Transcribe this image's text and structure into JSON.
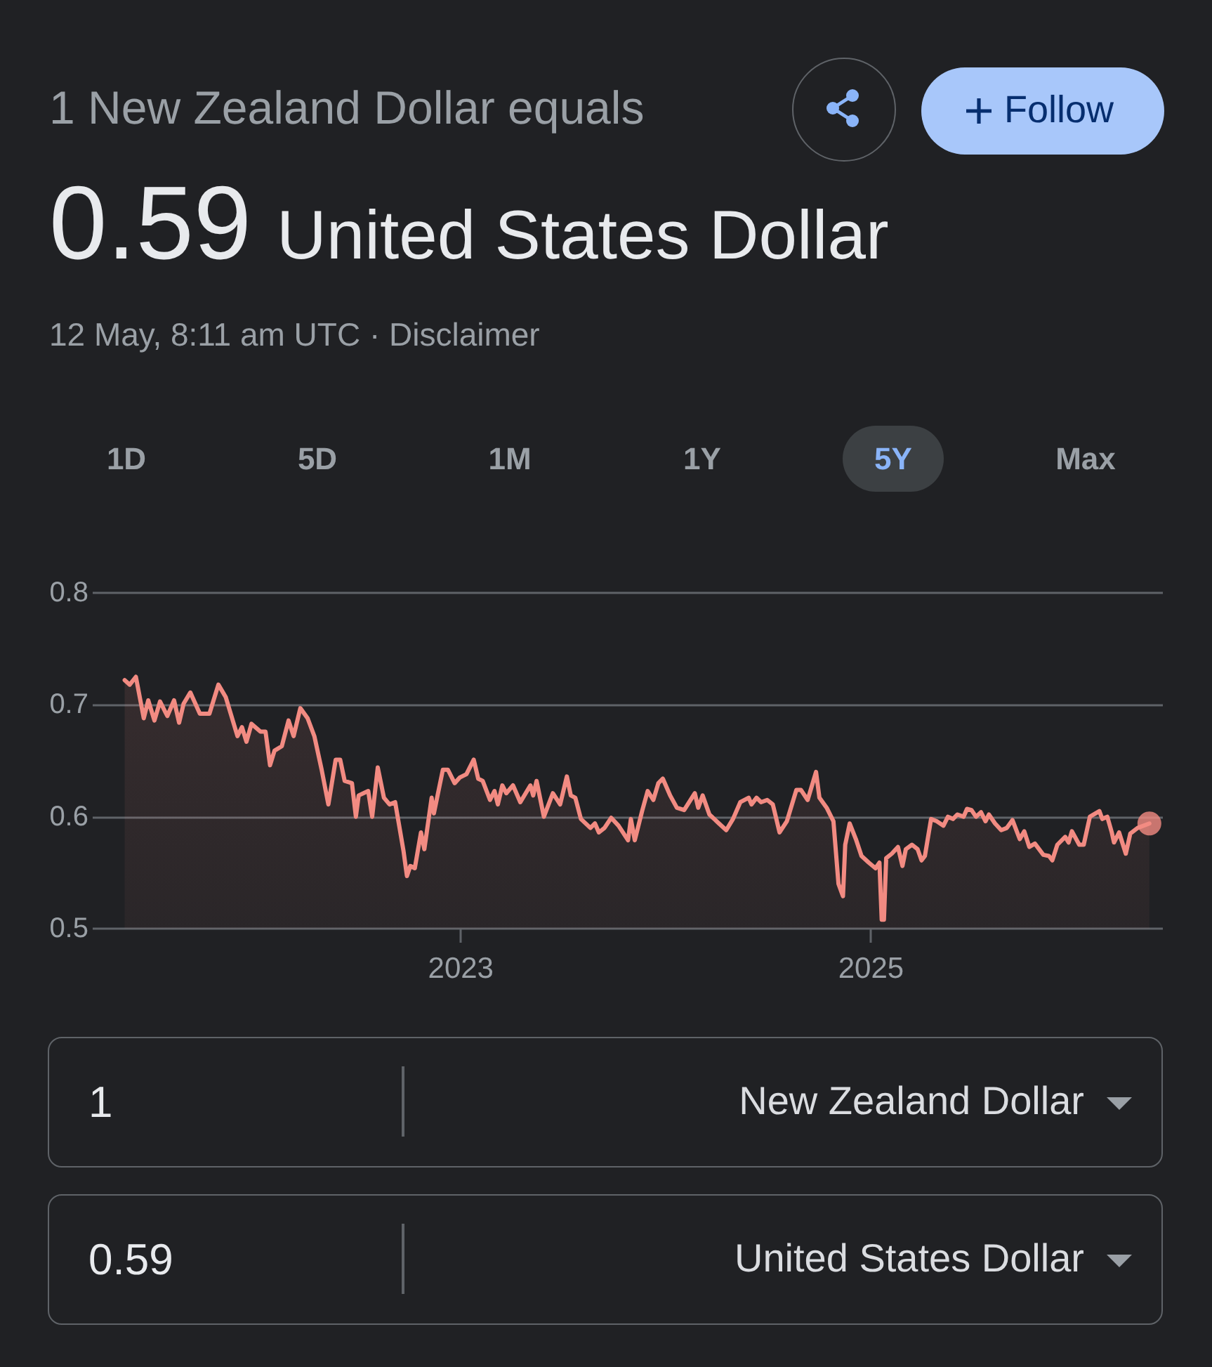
{
  "chart_data": {
    "type": "area",
    "title": "0.59 United States Dollar",
    "subtitle": "1 New Zealand Dollar equals",
    "annotations": [
      "12 May, 8:11 am UTC · Disclaimer",
      "Follow",
      "1D",
      "5D",
      "1M",
      "1Y",
      "5Y",
      "Max",
      "1",
      "New Zealand Dollar",
      "0.59",
      "United States Dollar"
    ],
    "xlim": [
      "2021-03-16",
      "2026-06-05"
    ],
    "xticks": [
      "2023",
      "2025"
    ],
    "ylim": [
      0.5,
      0.8
    ],
    "yticks": [
      0.5,
      0.6,
      0.7,
      0.8
    ],
    "grid": "y",
    "series": [
      {
        "color": "#f28b82",
        "x": [
          "2021-05-12",
          "2021-05-21",
          "2021-06-01",
          "2021-06-15",
          "2021-06-23",
          "2021-07-04",
          "2021-07-14",
          "2021-07-27",
          "2021-08-08",
          "2021-08-17",
          "2021-08-25",
          "2021-09-06",
          "2021-09-23",
          "2021-10-10",
          "2021-10-26",
          "2021-11-08",
          "2021-11-29",
          "2021-12-07",
          "2021-12-15",
          "2021-12-24",
          "2022-01-09",
          "2022-01-18",
          "2022-01-26",
          "2022-02-03",
          "2022-02-16",
          "2022-02-28",
          "2022-03-09",
          "2022-03-21",
          "2022-04-03",
          "2022-04-15",
          "2022-04-28",
          "2022-05-10",
          "2022-05-23",
          "2022-05-31",
          "2022-06-08",
          "2022-06-21",
          "2022-06-28",
          "2022-07-03",
          "2022-07-20",
          "2022-07-27",
          "2022-08-06",
          "2022-08-17",
          "2022-08-27",
          "2022-09-06",
          "2022-09-21",
          "2022-09-27",
          "2022-10-03",
          "2022-10-11",
          "2022-10-22",
          "2022-10-28",
          "2022-11-10",
          "2022-11-14",
          "2022-11-30",
          "2022-12-09",
          "2022-12-21",
          "2022-12-30",
          "2023-01-11",
          "2023-01-24",
          "2023-02-01",
          "2023-02-09",
          "2023-02-22",
          "2023-03-02",
          "2023-03-08",
          "2023-03-16",
          "2023-03-23",
          "2023-04-04",
          "2023-04-17",
          "2023-05-05",
          "2023-05-10",
          "2023-05-16",
          "2023-05-29",
          "2023-06-14",
          "2023-06-27",
          "2023-07-09",
          "2023-07-16",
          "2023-07-24",
          "2023-08-03",
          "2023-08-20",
          "2023-08-28",
          "2023-09-04",
          "2023-09-14",
          "2023-09-26",
          "2023-10-09",
          "2023-10-26",
          "2023-10-31",
          "2023-11-07",
          "2023-11-20",
          "2023-11-30",
          "2023-12-10",
          "2023-12-19",
          "2023-12-27",
          "2024-01-09",
          "2024-01-21",
          "2024-02-03",
          "2024-02-22",
          "2024-02-28",
          "2024-03-07",
          "2024-03-19",
          "2024-04-05",
          "2024-04-18",
          "2024-04-30",
          "2024-05-13",
          "2024-05-28",
          "2024-06-02",
          "2024-06-11",
          "2024-06-19",
          "2024-06-30",
          "2024-07-10",
          "2024-07-22",
          "2024-08-04",
          "2024-08-21",
          "2024-08-29",
          "2024-09-10",
          "2024-09-25",
          "2024-10-01",
          "2024-10-14",
          "2024-10-26",
          "2024-11-04",
          "2024-11-12",
          "2024-11-16",
          "2024-11-24",
          "2024-12-05",
          "2024-12-15",
          "2024-12-28",
          "2025-01-09",
          "2025-01-16",
          "2025-01-20",
          "2025-01-24",
          "2025-01-28",
          "2025-02-07",
          "2025-02-18",
          "2025-02-26",
          "2025-03-04",
          "2025-03-15",
          "2025-03-25",
          "2025-04-01",
          "2025-04-07",
          "2025-04-18",
          "2025-04-28",
          "2025-05-10",
          "2025-05-18",
          "2025-05-27",
          "2025-06-04",
          "2025-06-15",
          "2025-06-21",
          "2025-06-29",
          "2025-07-07",
          "2025-07-16",
          "2025-07-24",
          "2025-07-30",
          "2025-08-10",
          "2025-08-21",
          "2025-08-31",
          "2025-09-10",
          "2025-09-23",
          "2025-10-01",
          "2025-10-10",
          "2025-10-20",
          "2025-11-04",
          "2025-11-14",
          "2025-11-20",
          "2025-11-29",
          "2025-12-13",
          "2025-12-19",
          "2025-12-25",
          "2026-01-07",
          "2026-01-15",
          "2026-01-26",
          "2026-02-12",
          "2026-02-17",
          "2026-02-26",
          "2026-03-06",
          "2026-03-10",
          "2026-03-19",
          "2026-03-31",
          "2026-04-08",
          "2026-04-21",
          "2026-05-12"
        ],
        "values": [
          0.722,
          0.718,
          0.725,
          0.688,
          0.704,
          0.686,
          0.703,
          0.69,
          0.704,
          0.684,
          0.701,
          0.711,
          0.692,
          0.692,
          0.718,
          0.707,
          0.672,
          0.68,
          0.667,
          0.683,
          0.676,
          0.676,
          0.646,
          0.659,
          0.663,
          0.686,
          0.672,
          0.697,
          0.688,
          0.672,
          0.642,
          0.611,
          0.651,
          0.651,
          0.632,
          0.63,
          0.6,
          0.619,
          0.623,
          0.6,
          0.644,
          0.617,
          0.611,
          0.613,
          0.569,
          0.547,
          0.556,
          0.554,
          0.586,
          0.571,
          0.617,
          0.603,
          0.642,
          0.642,
          0.63,
          0.635,
          0.638,
          0.651,
          0.634,
          0.632,
          0.615,
          0.623,
          0.611,
          0.628,
          0.621,
          0.628,
          0.613,
          0.628,
          0.619,
          0.632,
          0.6,
          0.621,
          0.611,
          0.636,
          0.619,
          0.617,
          0.598,
          0.59,
          0.594,
          0.586,
          0.59,
          0.599,
          0.592,
          0.579,
          0.598,
          0.579,
          0.605,
          0.623,
          0.615,
          0.63,
          0.634,
          0.619,
          0.608,
          0.606,
          0.621,
          0.608,
          0.619,
          0.602,
          0.594,
          0.588,
          0.598,
          0.613,
          0.617,
          0.611,
          0.617,
          0.613,
          0.615,
          0.611,
          0.586,
          0.596,
          0.624,
          0.624,
          0.615,
          0.64,
          0.617,
          0.608,
          0.596,
          0.54,
          0.529,
          0.575,
          0.594,
          0.58,
          0.565,
          0.559,
          0.554,
          0.559,
          0.508,
          0.508,
          0.563,
          0.567,
          0.573,
          0.556,
          0.571,
          0.575,
          0.571,
          0.561,
          0.565,
          0.598,
          0.596,
          0.592,
          0.6,
          0.598,
          0.602,
          0.6,
          0.607,
          0.606,
          0.6,
          0.604,
          0.596,
          0.602,
          0.594,
          0.588,
          0.59,
          0.597,
          0.58,
          0.587,
          0.573,
          0.576,
          0.566,
          0.565,
          0.561,
          0.575,
          0.582,
          0.577,
          0.587,
          0.575,
          0.575,
          0.6,
          0.605,
          0.598,
          0.6,
          0.586,
          0.577,
          0.586,
          0.567,
          0.585,
          0.59,
          0.594
        ]
      },
      {
        "type": "scatter",
        "color": "#f28b82",
        "x": [
          "2026-05-12"
        ],
        "values": [
          0.594
        ]
      }
    ]
  }
}
